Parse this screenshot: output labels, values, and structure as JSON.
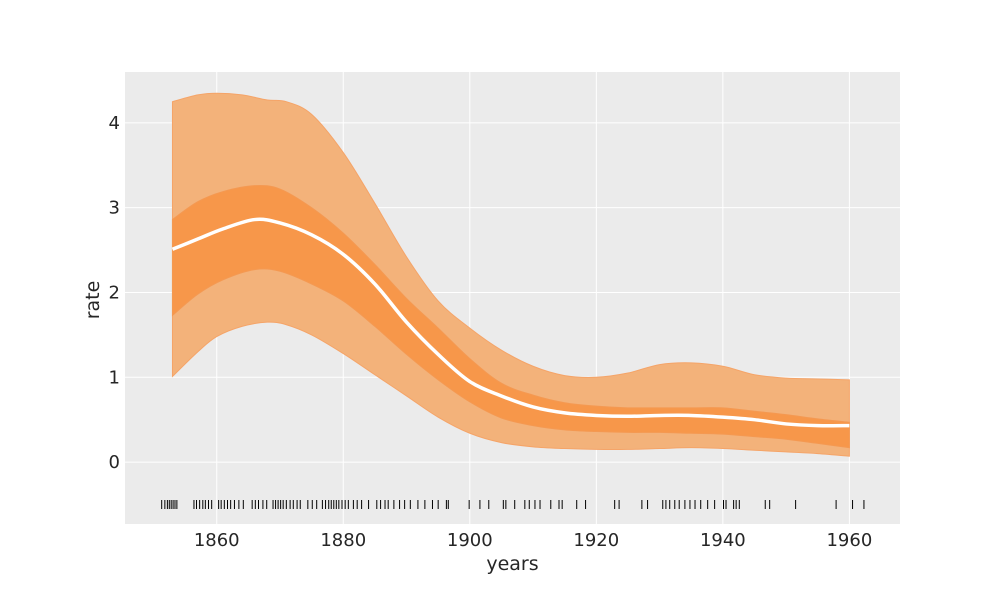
{
  "chart_data": {
    "type": "area",
    "title": "",
    "xlabel": "years",
    "ylabel": "rate",
    "xlim": [
      1845.5,
      1968
    ],
    "ylim": [
      -0.73,
      4.6
    ],
    "xticks": [
      1860,
      1880,
      1900,
      1920,
      1940,
      1960
    ],
    "yticks": [
      0,
      1,
      2,
      3,
      4
    ],
    "grid": true,
    "legend": "none",
    "colors": {
      "background": "#ebebeb",
      "grid": "#ffffff",
      "outer_band": "#f3b27a",
      "outer_band_edge": "#f5a468",
      "inner_band": "#f7974a",
      "inner_band_edge": "#f49952",
      "mean_line": "#ffffff",
      "rug": "#000000"
    },
    "mean": {
      "x": [
        1853,
        1857,
        1861,
        1866,
        1870,
        1875,
        1880,
        1885,
        1890,
        1895,
        1900,
        1905,
        1910,
        1915,
        1920,
        1925,
        1930,
        1935,
        1940,
        1945,
        1950,
        1955,
        1960
      ],
      "y": [
        2.51,
        2.63,
        2.75,
        2.86,
        2.82,
        2.68,
        2.45,
        2.1,
        1.65,
        1.27,
        0.95,
        0.78,
        0.65,
        0.58,
        0.55,
        0.54,
        0.55,
        0.55,
        0.53,
        0.5,
        0.45,
        0.43,
        0.43
      ]
    },
    "bands": [
      {
        "level": "outer",
        "x": [
          1853,
          1857,
          1860,
          1864,
          1868,
          1871,
          1875,
          1880,
          1885,
          1890,
          1895,
          1900,
          1905,
          1910,
          1915,
          1920,
          1925,
          1930,
          1935,
          1940,
          1945,
          1950,
          1955,
          1960
        ],
        "lower": [
          1.01,
          1.3,
          1.48,
          1.6,
          1.65,
          1.62,
          1.5,
          1.28,
          1.03,
          0.78,
          0.53,
          0.34,
          0.23,
          0.18,
          0.16,
          0.15,
          0.15,
          0.16,
          0.17,
          0.16,
          0.14,
          0.12,
          0.1,
          0.07
        ],
        "upper": [
          4.25,
          4.33,
          4.35,
          4.33,
          4.27,
          4.25,
          4.1,
          3.65,
          3.05,
          2.42,
          1.9,
          1.58,
          1.32,
          1.13,
          1.02,
          1.0,
          1.05,
          1.15,
          1.17,
          1.13,
          1.03,
          0.99,
          0.98,
          0.97
        ]
      },
      {
        "level": "inner",
        "x": [
          1853,
          1857,
          1861,
          1866,
          1870,
          1875,
          1880,
          1885,
          1890,
          1895,
          1900,
          1905,
          1910,
          1915,
          1920,
          1925,
          1930,
          1935,
          1940,
          1945,
          1950,
          1955,
          1960
        ],
        "lower": [
          1.73,
          1.98,
          2.15,
          2.27,
          2.25,
          2.1,
          1.9,
          1.6,
          1.27,
          0.97,
          0.71,
          0.52,
          0.43,
          0.38,
          0.36,
          0.35,
          0.35,
          0.34,
          0.33,
          0.3,
          0.27,
          0.22,
          0.17
        ],
        "upper": [
          2.86,
          3.07,
          3.19,
          3.26,
          3.22,
          3.0,
          2.7,
          2.33,
          1.93,
          1.58,
          1.22,
          0.93,
          0.79,
          0.7,
          0.66,
          0.64,
          0.64,
          0.64,
          0.64,
          0.6,
          0.56,
          0.51,
          0.47
        ]
      }
    ],
    "rug": {
      "y": -0.5,
      "years": [
        1851.3,
        1851.8,
        1852.2,
        1852.5,
        1852.8,
        1853.1,
        1853.4,
        1853.7,
        1856.4,
        1856.8,
        1857.3,
        1857.8,
        1858.2,
        1858.7,
        1859.2,
        1860.3,
        1860.7,
        1861.2,
        1861.7,
        1862.2,
        1862.8,
        1863.5,
        1864.2,
        1865.6,
        1866.1,
        1866.6,
        1867.3,
        1867.9,
        1868.9,
        1869.3,
        1869.7,
        1870.1,
        1870.5,
        1871.0,
        1871.6,
        1872.1,
        1872.7,
        1873.2,
        1874.4,
        1875.1,
        1875.8,
        1876.7,
        1877.2,
        1877.7,
        1878.1,
        1878.5,
        1878.9,
        1879.3,
        1879.8,
        1880.3,
        1880.8,
        1881.6,
        1882.2,
        1882.9,
        1884.0,
        1885.3,
        1885.9,
        1886.6,
        1887.1,
        1888.0,
        1888.9,
        1889.7,
        1890.6,
        1891.8,
        1892.9,
        1894.1,
        1895.0,
        1896.3,
        1896.6,
        1899.9,
        1901.6,
        1903.0,
        1905.3,
        1905.7,
        1907.1,
        1908.7,
        1909.4,
        1910.3,
        1911.1,
        1912.8,
        1914.1,
        1914.6,
        1916.9,
        1918.3,
        1922.9,
        1923.6,
        1927.2,
        1928.1,
        1930.5,
        1931.0,
        1931.6,
        1932.4,
        1933.1,
        1934.0,
        1934.8,
        1935.6,
        1936.5,
        1937.6,
        1938.7,
        1940.1,
        1940.5,
        1941.7,
        1942.1,
        1942.6,
        1946.7,
        1947.4,
        1951.5,
        1957.9,
        1960.5,
        1962.3
      ]
    }
  }
}
